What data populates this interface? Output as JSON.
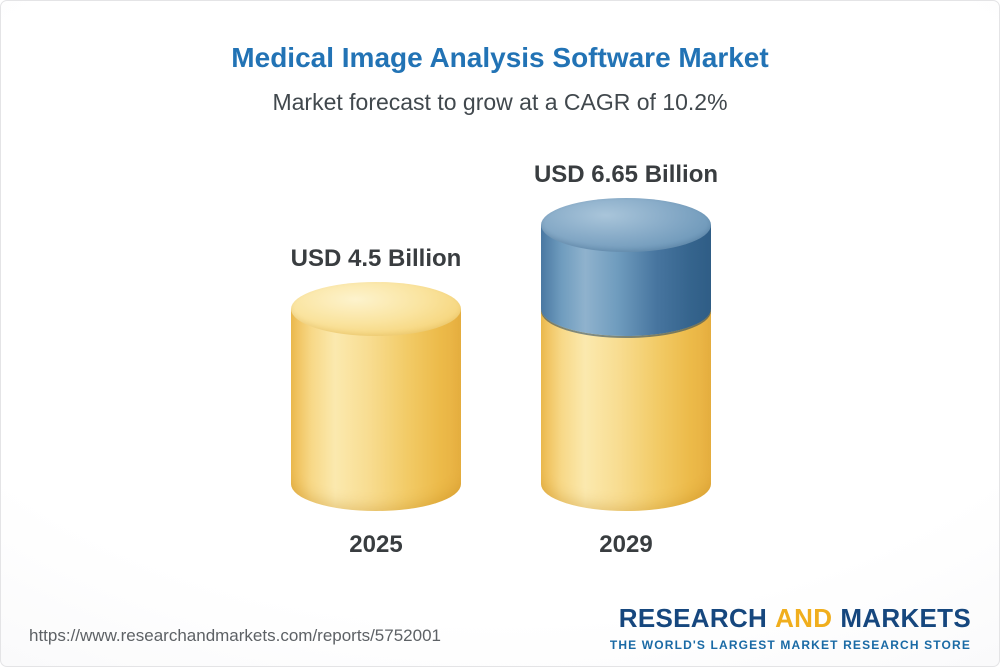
{
  "header": {
    "title": "Medical Image Analysis Software Market",
    "subtitle": "Market forecast to grow at a CAGR of 10.2%",
    "title_color": "#2273b5"
  },
  "chart_data": {
    "type": "bar",
    "style": "3d-cylinder",
    "categories": [
      "2025",
      "2029"
    ],
    "values": [
      4.5,
      6.65
    ],
    "value_labels": [
      "USD 4.5 Billion",
      "USD 6.65 Billion"
    ],
    "series": [
      {
        "name": "base-value",
        "values": [
          4.5,
          4.5
        ],
        "color": "#f2cb67"
      },
      {
        "name": "growth-increment",
        "values": [
          0,
          2.15
        ],
        "color": "#3f719c"
      }
    ],
    "unit": "USD Billion",
    "ylim": [
      0,
      7
    ],
    "cagr_percent": 10.2,
    "title": "Medical Image Analysis Software Market",
    "subtitle": "Market forecast to grow at a CAGR of 10.2%",
    "legend": "none",
    "grid": "off"
  },
  "footer": {
    "url": "https://www.researchandmarkets.com/reports/5752001",
    "brand": {
      "word1": "RESEARCH",
      "word2": "AND",
      "word3": "MARKETS",
      "tagline": "THE WORLD'S LARGEST MARKET RESEARCH STORE",
      "navy": "#16477e",
      "gold": "#f0ae1d",
      "tagline_color": "#1a6aa5"
    }
  }
}
